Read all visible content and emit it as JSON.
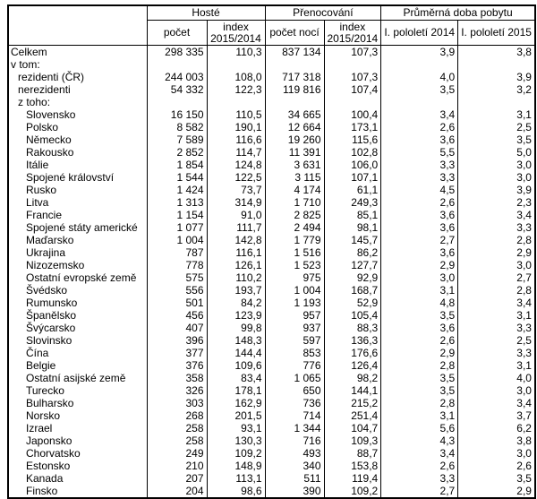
{
  "header": {
    "groups": [
      "Hosté",
      "Přenocování",
      "Průměrná doba pobytu"
    ],
    "columns": [
      "počet",
      "index 2015/2014",
      "počet nocí",
      "index 2015/2014",
      "I. pololetí 2014",
      "I. pololetí 2015"
    ]
  },
  "rows": [
    {
      "level": 0,
      "cells": [
        "Celkem",
        "298 335",
        "110,3",
        "837 134",
        "107,3",
        "3,9",
        "3,8"
      ]
    },
    {
      "level": 0,
      "cells": [
        "v tom:",
        "",
        "",
        "",
        "",
        "",
        ""
      ]
    },
    {
      "level": 1,
      "cells": [
        "rezidenti (ČR)",
        "244 003",
        "108,0",
        "717 318",
        "107,3",
        "4,0",
        "3,9"
      ]
    },
    {
      "level": 1,
      "cells": [
        "nerezidenti",
        "54 332",
        "122,3",
        "119 816",
        "107,4",
        "3,5",
        "3,2"
      ]
    },
    {
      "level": 1,
      "cells": [
        "z toho:",
        "",
        "",
        "",
        "",
        "",
        ""
      ]
    },
    {
      "level": 2,
      "cells": [
        "Slovensko",
        "16 150",
        "110,5",
        "34 665",
        "100,4",
        "3,4",
        "3,1"
      ]
    },
    {
      "level": 2,
      "cells": [
        "Polsko",
        "8 582",
        "190,1",
        "12 664",
        "173,1",
        "2,6",
        "2,5"
      ]
    },
    {
      "level": 2,
      "cells": [
        "Německo",
        "7 589",
        "116,6",
        "19 260",
        "115,6",
        "3,6",
        "3,5"
      ]
    },
    {
      "level": 2,
      "cells": [
        "Rakousko",
        "2 852",
        "114,7",
        "11 391",
        "102,8",
        "5,5",
        "5,0"
      ]
    },
    {
      "level": 2,
      "cells": [
        "Itálie",
        "1 854",
        "124,8",
        "3 631",
        "106,0",
        "3,3",
        "3,0"
      ]
    },
    {
      "level": 2,
      "cells": [
        "Spojené království",
        "1 544",
        "122,5",
        "3 115",
        "107,1",
        "3,3",
        "3,0"
      ]
    },
    {
      "level": 2,
      "cells": [
        "Rusko",
        "1 424",
        "73,7",
        "4 174",
        "61,1",
        "4,5",
        "3,9"
      ]
    },
    {
      "level": 2,
      "cells": [
        "Litva",
        "1 313",
        "314,9",
        "1 710",
        "249,3",
        "2,6",
        "2,3"
      ]
    },
    {
      "level": 2,
      "cells": [
        "Francie",
        "1 154",
        "91,0",
        "2 825",
        "85,1",
        "3,6",
        "3,4"
      ]
    },
    {
      "level": 2,
      "cells": [
        "Spojené státy americké",
        "1 077",
        "111,7",
        "2 494",
        "98,1",
        "3,6",
        "3,3"
      ]
    },
    {
      "level": 2,
      "cells": [
        "Maďarsko",
        "1 004",
        "142,8",
        "1 779",
        "145,7",
        "2,7",
        "2,8"
      ]
    },
    {
      "level": 2,
      "cells": [
        "Ukrajina",
        "787",
        "116,1",
        "1 516",
        "86,2",
        "3,6",
        "2,9"
      ]
    },
    {
      "level": 2,
      "cells": [
        "Nizozemsko",
        "778",
        "126,1",
        "1 523",
        "127,7",
        "2,9",
        "3,0"
      ]
    },
    {
      "level": 2,
      "cells": [
        "Ostatní evropské země",
        "575",
        "110,2",
        "975",
        "92,9",
        "3,0",
        "2,7"
      ]
    },
    {
      "level": 2,
      "cells": [
        "Švédsko",
        "556",
        "193,7",
        "1 004",
        "168,7",
        "3,1",
        "2,8"
      ]
    },
    {
      "level": 2,
      "cells": [
        "Rumunsko",
        "501",
        "84,2",
        "1 193",
        "52,9",
        "4,8",
        "3,4"
      ]
    },
    {
      "level": 2,
      "cells": [
        "Španělsko",
        "456",
        "123,9",
        "957",
        "105,4",
        "3,5",
        "3,1"
      ]
    },
    {
      "level": 2,
      "cells": [
        "Švýcarsko",
        "407",
        "99,8",
        "937",
        "88,3",
        "3,6",
        "3,3"
      ]
    },
    {
      "level": 2,
      "cells": [
        "Slovinsko",
        "396",
        "148,3",
        "597",
        "136,3",
        "2,6",
        "2,5"
      ]
    },
    {
      "level": 2,
      "cells": [
        "Čína",
        "377",
        "144,4",
        "853",
        "176,6",
        "2,9",
        "3,3"
      ]
    },
    {
      "level": 2,
      "cells": [
        "Belgie",
        "376",
        "109,6",
        "776",
        "126,4",
        "2,8",
        "3,1"
      ]
    },
    {
      "level": 2,
      "cells": [
        "Ostatní asijské země",
        "358",
        "83,4",
        "1 065",
        "98,2",
        "3,5",
        "4,0"
      ]
    },
    {
      "level": 2,
      "cells": [
        "Turecko",
        "326",
        "178,1",
        "650",
        "144,1",
        "3,5",
        "3,0"
      ]
    },
    {
      "level": 2,
      "cells": [
        "Bulharsko",
        "303",
        "162,9",
        "736",
        "215,2",
        "2,8",
        "3,4"
      ]
    },
    {
      "level": 2,
      "cells": [
        "Norsko",
        "268",
        "201,5",
        "714",
        "251,4",
        "3,1",
        "3,7"
      ]
    },
    {
      "level": 2,
      "cells": [
        "Izrael",
        "258",
        "93,1",
        "1 344",
        "104,7",
        "5,6",
        "6,2"
      ]
    },
    {
      "level": 2,
      "cells": [
        "Japonsko",
        "258",
        "130,3",
        "716",
        "109,3",
        "4,3",
        "3,8"
      ]
    },
    {
      "level": 2,
      "cells": [
        "Chorvatsko",
        "249",
        "109,2",
        "493",
        "88,7",
        "3,4",
        "3,0"
      ]
    },
    {
      "level": 2,
      "cells": [
        "Estonsko",
        "210",
        "148,9",
        "340",
        "153,8",
        "2,6",
        "2,6"
      ]
    },
    {
      "level": 2,
      "cells": [
        "Kanada",
        "207",
        "113,1",
        "511",
        "119,4",
        "3,3",
        "3,5"
      ]
    },
    {
      "level": 2,
      "cells": [
        "Finsko",
        "204",
        "98,6",
        "390",
        "109,2",
        "2,7",
        "2,9"
      ]
    }
  ]
}
